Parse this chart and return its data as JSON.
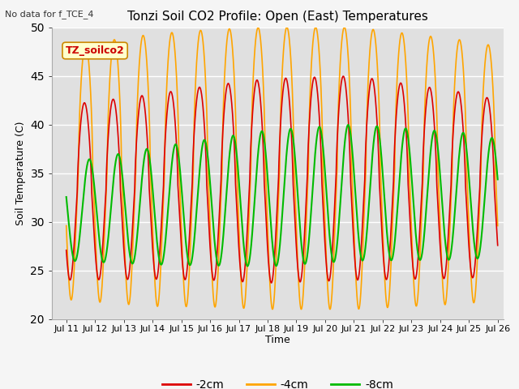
{
  "title": "Tonzi Soil CO2 Profile: Open (East) Temperatures",
  "no_data_label": "No data for f_TCE_4",
  "site_label": "TZ_soilco2",
  "xlabel": "Time",
  "ylabel": "Soil Temperature (C)",
  "ylim": [
    20,
    50
  ],
  "xlim_start": 10.5,
  "xlim_end": 26.2,
  "xtick_labels": [
    "Jul 11",
    "Jul 12",
    "Jul 13",
    "Jul 14",
    "Jul 15",
    "Jul 16",
    "Jul 17",
    "Jul 18",
    "Jul 19",
    "Jul 20",
    "Jul 21",
    "Jul 22",
    "Jul 23",
    "Jul 24",
    "Jul 25",
    "Jul 26"
  ],
  "xtick_positions": [
    11,
    12,
    13,
    14,
    15,
    16,
    17,
    18,
    19,
    20,
    21,
    22,
    23,
    24,
    25,
    26
  ],
  "legend_labels": [
    "-2cm",
    "-4cm",
    "-8cm"
  ],
  "legend_colors": [
    "#dd0000",
    "#ffa500",
    "#00bb00"
  ],
  "bg_color": "#e0e0e0",
  "grid_color": "#ffffff",
  "fig_color": "#f5f5f5",
  "series_2cm_color": "#dd0000",
  "series_4cm_color": "#ffa500",
  "series_8cm_color": "#00bb00"
}
